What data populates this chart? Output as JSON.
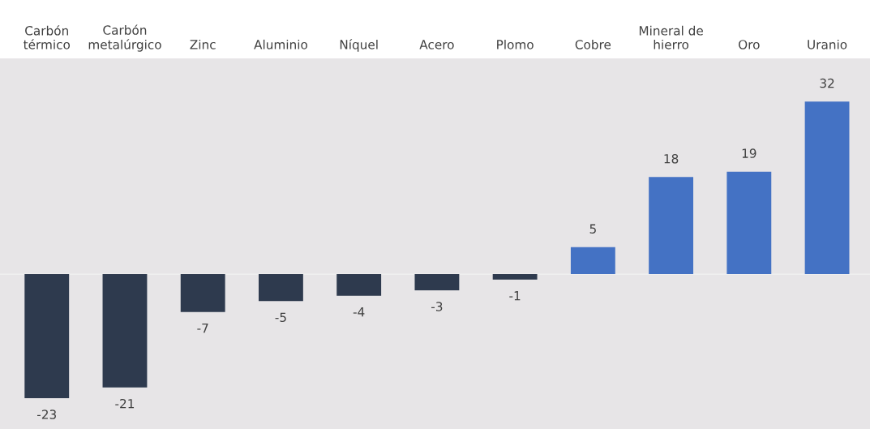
{
  "chart_data": {
    "type": "bar",
    "categories": [
      "Carbón térmico",
      "Carbón metalúrgico",
      "Zinc",
      "Aluminio",
      "Níquel",
      "Acero",
      "Plomo",
      "Cobre",
      "Mineral de hierro",
      "Oro",
      "Uranio"
    ],
    "values": [
      -23,
      -21,
      -7,
      -5,
      -4,
      -3,
      -1,
      5,
      18,
      19,
      32
    ],
    "colors": [
      "#2e3a4e",
      "#2e3a4e",
      "#2e3a4e",
      "#2e3a4e",
      "#2e3a4e",
      "#2e3a4e",
      "#2e3a4e",
      "#4472c4",
      "#4472c4",
      "#4472c4",
      "#4472c4"
    ],
    "ylim": [
      -28.7,
      40
    ],
    "data_labels": true,
    "grid": false,
    "legend": false
  }
}
